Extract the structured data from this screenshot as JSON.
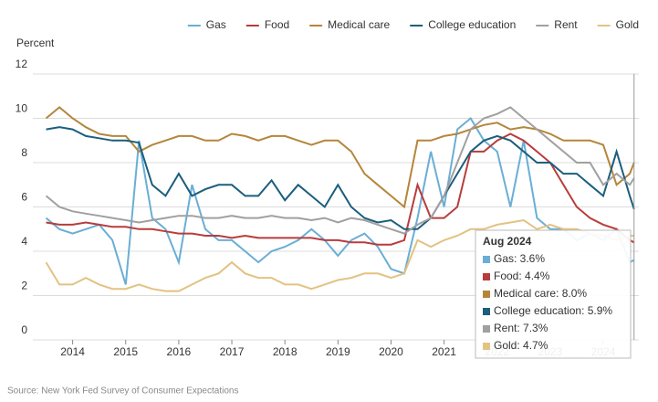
{
  "chart_data": {
    "type": "line",
    "y_label": "Percent",
    "source": "Source: New York Fed Survey of Consumer Expectations",
    "x": [
      2013.5,
      2013.75,
      2014,
      2014.25,
      2014.5,
      2014.75,
      2015,
      2015.25,
      2015.5,
      2015.75,
      2016,
      2016.25,
      2016.5,
      2016.75,
      2017,
      2017.25,
      2017.5,
      2017.75,
      2018,
      2018.25,
      2018.5,
      2018.75,
      2019,
      2019.25,
      2019.5,
      2019.75,
      2020,
      2020.25,
      2020.5,
      2020.75,
      2021,
      2021.25,
      2021.5,
      2021.75,
      2022,
      2022.25,
      2022.5,
      2022.75,
      2023,
      2023.25,
      2023.5,
      2023.75,
      2024,
      2024.25,
      2024.5,
      2024.58
    ],
    "xlim": [
      2013.25,
      2024.67
    ],
    "xticks": [
      2014,
      2015,
      2016,
      2017,
      2018,
      2019,
      2020,
      2021,
      2022,
      2023,
      2024
    ],
    "ylim": [
      0,
      12
    ],
    "yticks": [
      0,
      2,
      4,
      6,
      8,
      10,
      12
    ],
    "grid": true,
    "legend": "top-right",
    "series": [
      {
        "name": "Gas",
        "color": "#6aaed6",
        "values": [
          5.5,
          5.0,
          4.8,
          5.0,
          5.2,
          4.5,
          2.5,
          9.0,
          5.5,
          5.0,
          3.5,
          7.0,
          5.0,
          4.5,
          4.5,
          4.0,
          3.5,
          4.0,
          4.2,
          4.5,
          5.0,
          4.5,
          3.8,
          4.5,
          4.8,
          4.2,
          3.2,
          3.0,
          5.5,
          8.5,
          6.0,
          9.5,
          10.0,
          9.0,
          8.5,
          6.0,
          9.0,
          5.5,
          5.0,
          5.0,
          4.5,
          4.8,
          4.5,
          5.0,
          3.5,
          3.6
        ]
      },
      {
        "name": "Food",
        "color": "#b83c3c",
        "values": [
          5.3,
          5.2,
          5.2,
          5.3,
          5.2,
          5.1,
          5.1,
          5.0,
          5.0,
          4.9,
          4.8,
          4.8,
          4.7,
          4.7,
          4.6,
          4.7,
          4.6,
          4.6,
          4.6,
          4.6,
          4.6,
          4.5,
          4.5,
          4.4,
          4.4,
          4.3,
          4.3,
          4.5,
          7.0,
          5.5,
          5.5,
          6.0,
          8.5,
          8.5,
          9.0,
          9.3,
          9.0,
          8.5,
          8.0,
          7.0,
          6.0,
          5.5,
          5.2,
          5.0,
          4.5,
          4.4
        ]
      },
      {
        "name": "Medical care",
        "color": "#b5863a",
        "values": [
          10.0,
          10.5,
          10.0,
          9.6,
          9.3,
          9.2,
          9.2,
          8.5,
          8.8,
          9.0,
          9.2,
          9.2,
          9.0,
          9.0,
          9.3,
          9.2,
          9.0,
          9.2,
          9.2,
          9.0,
          8.8,
          9.0,
          9.0,
          8.5,
          7.5,
          7.0,
          6.5,
          6.0,
          9.0,
          9.0,
          9.2,
          9.3,
          9.5,
          9.7,
          9.8,
          9.5,
          9.6,
          9.5,
          9.3,
          9.0,
          9.0,
          9.0,
          8.8,
          7.0,
          7.5,
          8.0
        ]
      },
      {
        "name": "College education",
        "color": "#1b5e7e",
        "values": [
          9.5,
          9.6,
          9.5,
          9.2,
          9.1,
          9.0,
          9.0,
          8.9,
          7.0,
          6.5,
          7.5,
          6.5,
          6.8,
          7.0,
          7.0,
          6.5,
          6.5,
          7.2,
          6.3,
          7.0,
          6.5,
          6.0,
          7.0,
          6.0,
          5.5,
          5.3,
          5.4,
          5.0,
          5.0,
          5.5,
          6.5,
          7.5,
          8.5,
          9.0,
          9.2,
          9.0,
          8.5,
          8.0,
          8.0,
          7.5,
          7.5,
          7.0,
          6.5,
          8.5,
          6.5,
          5.9
        ]
      },
      {
        "name": "Rent",
        "color": "#a0a0a0",
        "values": [
          6.5,
          6.0,
          5.8,
          5.7,
          5.6,
          5.5,
          5.4,
          5.3,
          5.4,
          5.5,
          5.6,
          5.6,
          5.5,
          5.5,
          5.6,
          5.5,
          5.5,
          5.6,
          5.5,
          5.5,
          5.4,
          5.5,
          5.3,
          5.5,
          5.4,
          5.2,
          5.0,
          4.8,
          5.2,
          5.5,
          6.5,
          8.0,
          9.5,
          10.0,
          10.2,
          10.5,
          10.0,
          9.5,
          9.0,
          8.5,
          8.0,
          8.0,
          7.0,
          7.5,
          7.0,
          7.3
        ]
      },
      {
        "name": "Gold",
        "color": "#e3c282",
        "values": [
          3.5,
          2.5,
          2.5,
          2.8,
          2.5,
          2.3,
          2.3,
          2.5,
          2.3,
          2.2,
          2.2,
          2.5,
          2.8,
          3.0,
          3.5,
          3.0,
          2.8,
          2.8,
          2.5,
          2.5,
          2.3,
          2.5,
          2.7,
          2.8,
          3.0,
          3.0,
          2.8,
          3.0,
          4.5,
          4.2,
          4.5,
          4.7,
          5.0,
          5.0,
          5.2,
          5.3,
          5.4,
          5.0,
          5.2,
          5.0,
          5.0,
          4.8,
          4.7,
          4.5,
          4.7,
          4.7
        ]
      }
    ],
    "tooltip": {
      "title": "Aug 2024",
      "items": [
        "Gas: 3.6%",
        "Food: 4.4%",
        "Medical care: 8.0%",
        "College education: 5.9%",
        "Rent: 7.3%",
        "Gold: 4.7%"
      ]
    }
  }
}
